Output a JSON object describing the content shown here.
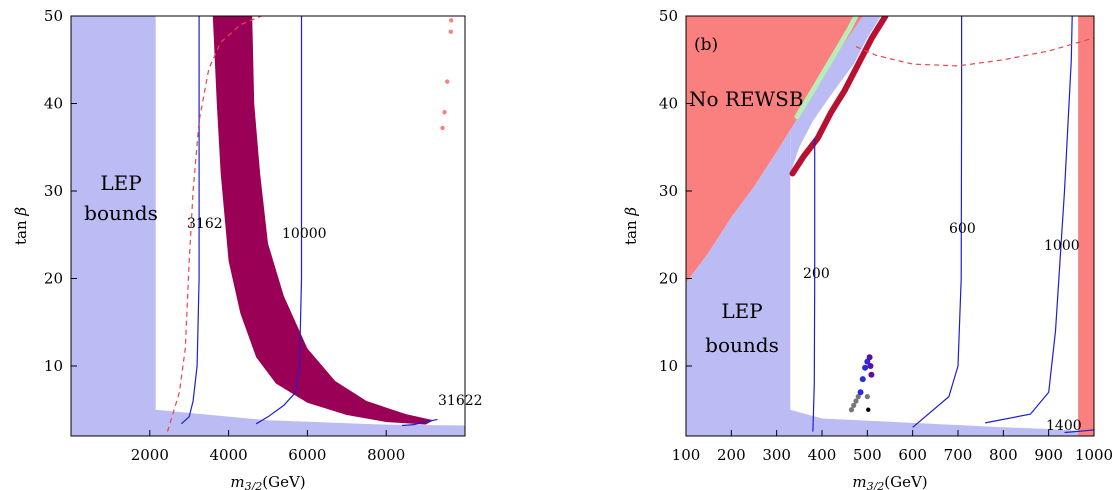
{
  "chart_data": [
    {
      "type": "scatter",
      "panel_label": "",
      "xlabel": "m_{3/2}(GeV)",
      "ylabel": "tan β",
      "xlim": [
        0,
        10000
      ],
      "ylim": [
        2,
        50
      ],
      "xticks": [
        2000,
        4000,
        6000,
        8000
      ],
      "yticks": [
        10,
        20,
        30,
        40,
        50
      ],
      "colors": {
        "excluded": "#fa8080",
        "lep": "#bcbcf4",
        "band": "#9a0055",
        "contour": "#1f1fcc",
        "dashed": "#e8454a"
      },
      "regions": {
        "lep": {
          "label_lines": [
            "LEP",
            "bounds"
          ],
          "x_max": 2150,
          "bottom": [
            [
              2150,
              5.0
            ],
            [
              5000,
              3.8
            ],
            [
              8000,
              3.3
            ],
            [
              10000,
              3.2
            ]
          ]
        },
        "excluded_strip": {
          "x_min": 0,
          "x_max": 60
        }
      },
      "band": {
        "inner": [
          [
            3600,
            50
          ],
          [
            3700,
            40
          ],
          [
            3800,
            32
          ],
          [
            4000,
            22
          ],
          [
            4300,
            16
          ],
          [
            4700,
            11
          ],
          [
            5200,
            8
          ],
          [
            6000,
            5.8
          ],
          [
            7000,
            4.4
          ],
          [
            8000,
            3.6
          ],
          [
            9000,
            3.3
          ]
        ],
        "outer": [
          [
            4600,
            50
          ],
          [
            4650,
            40
          ],
          [
            4800,
            32
          ],
          [
            5000,
            24
          ],
          [
            5400,
            18
          ],
          [
            6000,
            12
          ],
          [
            6700,
            8.3
          ],
          [
            7500,
            6
          ],
          [
            8500,
            4.5
          ],
          [
            9200,
            3.8
          ]
        ]
      },
      "contours": [
        {
          "label": "3162",
          "points": [
            [
              3250,
              50
            ],
            [
              3250,
              20
            ],
            [
              3200,
              10
            ],
            [
              3100,
              6
            ],
            [
              3000,
              4.2
            ],
            [
              2800,
              3.4
            ]
          ]
        },
        {
          "label": "10000",
          "points": [
            [
              5850,
              50
            ],
            [
              5850,
              20
            ],
            [
              5800,
              10
            ],
            [
              5700,
              7
            ],
            [
              5400,
              5.5
            ],
            [
              5000,
              4.2
            ],
            [
              4700,
              3.4
            ]
          ]
        },
        {
          "label": "31622",
          "points": [
            [
              8400,
              3.2
            ],
            [
              8700,
              3.3
            ],
            [
              9000,
              3.6
            ],
            [
              9300,
              3.9
            ]
          ]
        }
      ],
      "dashed": [
        [
          2450,
          2.5
        ],
        [
          2750,
          7
        ],
        [
          2900,
          12
        ],
        [
          3000,
          22
        ],
        [
          3100,
          30
        ],
        [
          3250,
          38
        ],
        [
          3500,
          44
        ],
        [
          3800,
          47
        ],
        [
          4300,
          49
        ],
        [
          5100,
          50.5
        ]
      ],
      "scatter": [
        [
          9650,
          49.5
        ],
        [
          9640,
          48.2
        ],
        [
          9550,
          42.5
        ],
        [
          9480,
          39.0
        ],
        [
          9430,
          37.2
        ]
      ]
    },
    {
      "type": "scatter",
      "panel_label": "(b)",
      "xlabel": "m_{3/2}(GeV)",
      "ylabel": "tan β",
      "xlim": [
        100,
        1000
      ],
      "ylim": [
        2,
        50
      ],
      "xticks": [
        100,
        200,
        300,
        400,
        500,
        600,
        700,
        800,
        900,
        1000
      ],
      "yticks": [
        10,
        20,
        30,
        40,
        50
      ],
      "colors": {
        "excluded": "#fa8080",
        "lep": "#bcbcf4",
        "green": "#b8ecb8",
        "band": "#b81030",
        "purple": "#5a10a0",
        "blue": "#2a2ae0",
        "gray": "#777777",
        "black": "#000000",
        "contour": "#1f1fcc",
        "dashed": "#e8454a"
      },
      "regions": {
        "no_rewsb_label": "No REWSB",
        "lep_label_lines": [
          "LEP",
          "bounds"
        ],
        "rewsb_boundary": [
          [
            100,
            19.5
          ],
          [
            150,
            23
          ],
          [
            200,
            27
          ],
          [
            250,
            30.5
          ],
          [
            300,
            34.5
          ],
          [
            330,
            37
          ],
          [
            400,
            43
          ],
          [
            450,
            47
          ],
          [
            490,
            50
          ]
        ],
        "lep_right": [
          [
            330,
            37
          ],
          [
            350,
            40
          ],
          [
            380,
            42.5
          ],
          [
            420,
            45.5
          ],
          [
            460,
            48.5
          ],
          [
            490,
            50
          ],
          [
            530,
            50
          ],
          [
            500,
            47.5
          ],
          [
            470,
            44.5
          ],
          [
            420,
            41
          ],
          [
            380,
            38
          ],
          [
            350,
            35
          ],
          [
            330,
            32
          ]
        ],
        "right_strip": {
          "x_min": 965,
          "x_max": 1000
        },
        "lep_bottom": [
          [
            330,
            5.0
          ],
          [
            400,
            4.0
          ],
          [
            600,
            3.5
          ],
          [
            800,
            3.0
          ],
          [
            900,
            2.8
          ],
          [
            1000,
            2.5
          ]
        ]
      },
      "green_band": [
        [
          345,
          38.5
        ],
        [
          380,
          41.5
        ],
        [
          420,
          45
        ],
        [
          460,
          48.5
        ],
        [
          475,
          50
        ]
      ],
      "red_band": [
        [
          335,
          32
        ],
        [
          360,
          34
        ],
        [
          390,
          36
        ],
        [
          420,
          39
        ],
        [
          450,
          41.5
        ],
        [
          480,
          44.5
        ],
        [
          510,
          47.5
        ],
        [
          540,
          50
        ]
      ],
      "contours": [
        {
          "label": "200",
          "points": [
            [
              380,
              2.5
            ],
            [
              383,
              8
            ],
            [
              384,
              20
            ],
            [
              384,
              36
            ]
          ]
        },
        {
          "label": "600",
          "points": [
            [
              600,
              3
            ],
            [
              680,
              6.5
            ],
            [
              700,
              10
            ],
            [
              707,
              20
            ],
            [
              708,
              40
            ],
            [
              708,
              50
            ]
          ]
        },
        {
          "label": "1000",
          "points": [
            [
              760,
              3.5
            ],
            [
              860,
              4.5
            ],
            [
              900,
              7
            ],
            [
              915,
              14
            ],
            [
              935,
              30
            ],
            [
              950,
              45
            ],
            [
              952,
              50
            ]
          ]
        },
        {
          "label": "1400",
          "points": [
            [
              935,
              2.4
            ],
            [
              980,
              2.6
            ],
            [
              1000,
              2.7
            ]
          ]
        }
      ],
      "dashed": [
        [
          475,
          46.5
        ],
        [
          520,
          45.5
        ],
        [
          600,
          44.5
        ],
        [
          700,
          44.3
        ],
        [
          800,
          45
        ],
        [
          900,
          46
        ],
        [
          1000,
          47.5
        ]
      ],
      "blue_scatter": [
        [
          485,
          7
        ],
        [
          490,
          8.5
        ],
        [
          495,
          9.8
        ],
        [
          500,
          10.5
        ]
      ],
      "purple_scatter": [
        [
          505,
          11
        ],
        [
          507,
          10
        ],
        [
          509,
          9
        ]
      ],
      "gray_scatter": [
        [
          465,
          5
        ],
        [
          470,
          5.5
        ],
        [
          475,
          6
        ],
        [
          480,
          6.5
        ],
        [
          485,
          7
        ],
        [
          500,
          6.5
        ]
      ],
      "black_scatter": [
        [
          502,
          5
        ]
      ]
    }
  ]
}
